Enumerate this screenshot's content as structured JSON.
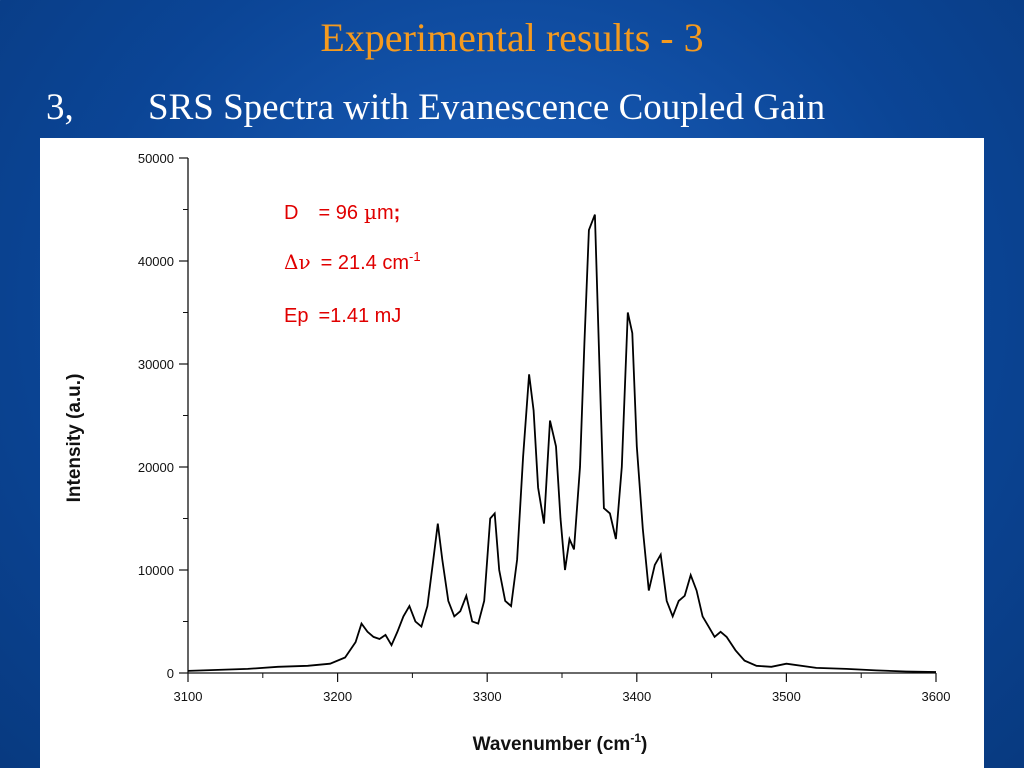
{
  "slide": {
    "title": "Experimental results - 3",
    "subtitle_number": "3,",
    "subtitle_text": "SRS Spectra with Evanescence Coupled Gain"
  },
  "colors": {
    "background": "#0a4aa0",
    "title": "#f59a1e",
    "subtitle": "#ffffff",
    "annotation": "#e00000",
    "line": "#000000"
  },
  "chart_data": {
    "type": "line",
    "title": "",
    "xlabel": "Wavenumber (cm",
    "xlabel_sup": "-1",
    "xlabel_end": ")",
    "ylabel": "Intensity (a.u.)",
    "xlim": [
      3100,
      3600
    ],
    "ylim": [
      0,
      50000
    ],
    "x_ticks": [
      "3100",
      "3200",
      "3300",
      "3400",
      "3500",
      "3600"
    ],
    "y_ticks": [
      "0",
      "10000",
      "20000",
      "30000",
      "40000",
      "50000"
    ],
    "grid": false,
    "annotations": {
      "d_label": "D",
      "d_value": "= 96",
      "d_unit_mu": "µ",
      "d_unit": "m",
      "d_sep": ";",
      "dnu_delta": "Δ",
      "dnu_nu": "ν",
      "dnu_value": "= 21.4 cm",
      "dnu_sup": "-1",
      "ep_label": "Ep",
      "ep_value": "=1.41 mJ"
    },
    "series": [
      {
        "x": [
          3100,
          3120,
          3140,
          3160,
          3180,
          3195,
          3205,
          3212,
          3216,
          3220,
          3224,
          3228,
          3232,
          3236,
          3240,
          3244,
          3248,
          3252,
          3256,
          3260,
          3264,
          3267,
          3270,
          3274,
          3278,
          3282,
          3286,
          3290,
          3294,
          3298,
          3302,
          3305,
          3308,
          3312,
          3316,
          3320,
          3324,
          3328,
          3331,
          3334,
          3338,
          3342,
          3346,
          3349,
          3352,
          3355,
          3358,
          3362,
          3365,
          3368,
          3372,
          3375,
          3378,
          3382,
          3386,
          3390,
          3394,
          3397,
          3400,
          3404,
          3408,
          3412,
          3416,
          3420,
          3424,
          3428,
          3432,
          3436,
          3440,
          3444,
          3448,
          3452,
          3456,
          3460,
          3466,
          3472,
          3480,
          3490,
          3500,
          3520,
          3540,
          3560,
          3580,
          3600
        ],
        "y": [
          200,
          300,
          400,
          600,
          700,
          900,
          1500,
          3000,
          4800,
          4000,
          3500,
          3300,
          3700,
          2700,
          4000,
          5500,
          6500,
          5000,
          4500,
          6500,
          11000,
          14500,
          11000,
          7000,
          5500,
          6000,
          7500,
          5000,
          4800,
          7000,
          15000,
          15500,
          10000,
          7000,
          6500,
          11000,
          21000,
          29000,
          25500,
          18000,
          14500,
          24500,
          22000,
          15000,
          10000,
          13000,
          12000,
          20000,
          32000,
          43000,
          44500,
          30000,
          16000,
          15500,
          13000,
          20000,
          35000,
          33000,
          22000,
          14000,
          8000,
          10500,
          11500,
          7000,
          5500,
          7000,
          7500,
          9500,
          8000,
          5500,
          4500,
          3500,
          4000,
          3500,
          2200,
          1200,
          700,
          600,
          900,
          500,
          400,
          250,
          150,
          100
        ]
      }
    ]
  }
}
